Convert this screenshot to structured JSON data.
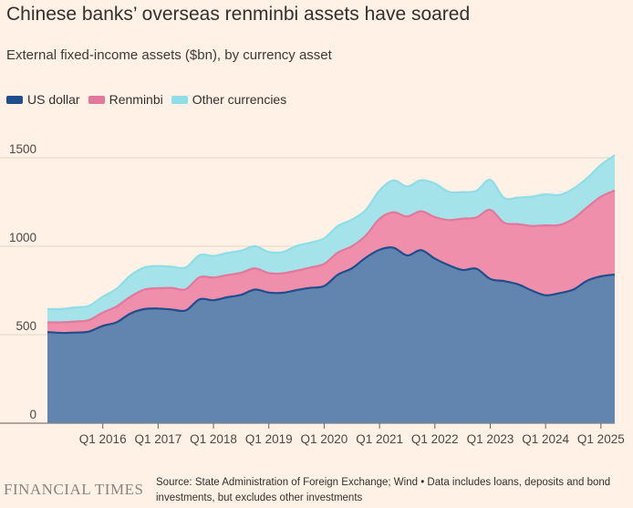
{
  "header": {
    "title": "Chinese banks’ overseas renminbi assets have soared",
    "subtitle": "External fixed-income assets ($bn), by currency asset"
  },
  "legend": [
    {
      "label": "US dollar",
      "color": "#1f4e8c"
    },
    {
      "label": "Renminbi",
      "color": "#e4779c"
    },
    {
      "label": "Other currencies",
      "color": "#8fdde6"
    }
  ],
  "footer": {
    "logo": "FINANCIAL TIMES",
    "source": "Source: State Administration of Foreign Exchange; Wind • Data includes loans, deposits and bond investments, but excludes other investments"
  },
  "chart_data": {
    "type": "area",
    "stacked": true,
    "title": "Chinese banks’ overseas renminbi assets have soared",
    "ylabel": "External fixed-income assets ($bn)",
    "ylim": [
      0,
      1550
    ],
    "yticks": [
      0,
      500,
      1000,
      1500
    ],
    "xtick_labels": [
      "Q1 2016",
      "Q1 2017",
      "Q1 2018",
      "Q1 2019",
      "Q1 2020",
      "Q1 2021",
      "Q1 2022",
      "Q1 2023",
      "Q1 2024",
      "Q1 2025"
    ],
    "x": [
      "Q1 2015",
      "Q2 2015",
      "Q3 2015",
      "Q4 2015",
      "Q1 2016",
      "Q2 2016",
      "Q3 2016",
      "Q4 2016",
      "Q1 2017",
      "Q2 2017",
      "Q3 2017",
      "Q4 2017",
      "Q1 2018",
      "Q2 2018",
      "Q3 2018",
      "Q4 2018",
      "Q1 2019",
      "Q2 2019",
      "Q3 2019",
      "Q4 2019",
      "Q1 2020",
      "Q2 2020",
      "Q3 2020",
      "Q4 2020",
      "Q1 2021",
      "Q2 2021",
      "Q3 2021",
      "Q4 2021",
      "Q1 2022",
      "Q2 2022",
      "Q3 2022",
      "Q4 2022",
      "Q1 2023",
      "Q2 2023",
      "Q3 2023",
      "Q4 2023",
      "Q1 2024",
      "Q2 2024",
      "Q3 2024",
      "Q4 2024",
      "Q1 2025",
      "Q2 2025"
    ],
    "series": [
      {
        "name": "US dollar",
        "color": "#1f4e8c",
        "values": [
          515,
          510,
          512,
          518,
          550,
          570,
          620,
          645,
          648,
          642,
          637,
          700,
          695,
          712,
          725,
          755,
          738,
          737,
          752,
          765,
          775,
          840,
          875,
          935,
          980,
          992,
          948,
          978,
          930,
          893,
          866,
          873,
          815,
          803,
          785,
          750,
          723,
          735,
          755,
          805,
          830,
          840
        ]
      },
      {
        "name": "Renminbi",
        "color": "#e4779c",
        "values": [
          55,
          60,
          62,
          65,
          75,
          90,
          95,
          110,
          115,
          122,
          120,
          125,
          128,
          125,
          125,
          120,
          110,
          110,
          110,
          115,
          125,
          125,
          125,
          125,
          175,
          200,
          220,
          220,
          235,
          255,
          290,
          290,
          390,
          330,
          340,
          365,
          395,
          385,
          400,
          415,
          450,
          475
        ]
      },
      {
        "name": "Other currencies",
        "color": "#8fdde6",
        "values": [
          75,
          75,
          80,
          80,
          90,
          100,
          120,
          125,
          125,
          120,
          123,
          125,
          122,
          125,
          125,
          125,
          120,
          120,
          140,
          140,
          145,
          150,
          150,
          145,
          160,
          180,
          170,
          175,
          190,
          160,
          150,
          150,
          170,
          140,
          150,
          165,
          175,
          170,
          170,
          165,
          180,
          200
        ]
      }
    ]
  }
}
